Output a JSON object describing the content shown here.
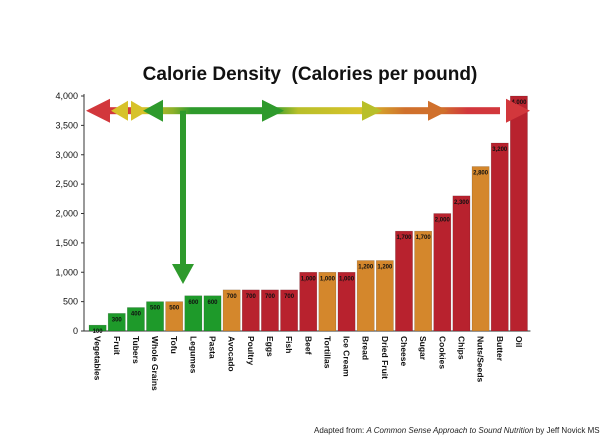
{
  "chart_data": {
    "type": "bar",
    "title": "Calorie Density  (Calories per pound)",
    "xlabel": "",
    "ylabel": "",
    "ylim": [
      0,
      4000
    ],
    "yticks": [
      0,
      500,
      1000,
      1500,
      2000,
      2500,
      3000,
      3500,
      4000
    ],
    "ytick_labels": [
      "0",
      "500",
      "1,000",
      "1,500",
      "2,000",
      "2,500",
      "3,000",
      "3,500",
      "4,000"
    ],
    "grid": false,
    "categories": [
      "Vegetables",
      "Fruit",
      "Tubers",
      "Whole Grains",
      "Tofu",
      "Legumes",
      "Pasta",
      "Avocado",
      "Poultry",
      "Eggs",
      "Fish",
      "Beef",
      "Tortillas",
      "Ice Cream",
      "Bread",
      "Dried Fruit",
      "Cheese",
      "Sugar",
      "Cookies",
      "Chips",
      "Nuts/Seeds",
      "Butter",
      "Oil"
    ],
    "values": [
      100,
      300,
      400,
      500,
      500,
      600,
      600,
      700,
      700,
      700,
      700,
      1000,
      1000,
      1000,
      1200,
      1200,
      1700,
      1700,
      2000,
      2300,
      2800,
      3200,
      4000
    ],
    "value_labels": [
      "100",
      "300",
      "400",
      "500",
      "500",
      "600",
      "600",
      "700",
      "700",
      "700",
      "700",
      "1,000",
      "1,000",
      "1,000",
      "1,200",
      "1,200",
      "1,700",
      "1,700",
      "2,000",
      "2,300",
      "2,800",
      "3,200",
      "4,000"
    ],
    "bar_colors": [
      "#1e9a2a",
      "#1e9a2a",
      "#1e9a2a",
      "#1e9a2a",
      "#d4872c",
      "#1e9a2a",
      "#1e9a2a",
      "#d4872c",
      "#b8222e",
      "#b8222e",
      "#b8222e",
      "#b8222e",
      "#d4872c",
      "#b8222e",
      "#d4872c",
      "#d4872c",
      "#b8222e",
      "#d4872c",
      "#b8222e",
      "#b8222e",
      "#d4872c",
      "#b8222e",
      "#b8222e"
    ],
    "arrows": {
      "horizontal_value": 3750,
      "vertical_drop_to_value": 800,
      "colors": {
        "red": "#d2373c",
        "yellow": "#d7c22a",
        "green": "#2e9a2c",
        "yellow_green": "#b8bf2a",
        "orange": "#d0702c"
      }
    }
  },
  "credit": {
    "prefix": "Adapted from: ",
    "source": "A Common Sense Approach to Sound Nutrition",
    "suffix": " by Jeff Novick MS, RD"
  }
}
